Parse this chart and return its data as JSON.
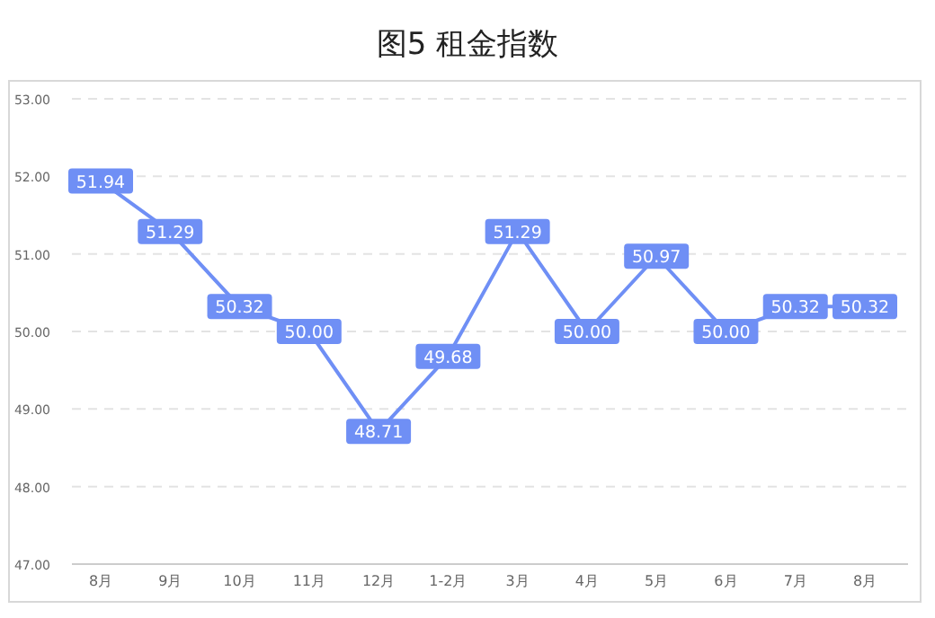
{
  "chart_data": {
    "type": "line",
    "title": "图5 租金指数",
    "categories": [
      "8月",
      "9月",
      "10月",
      "11月",
      "12月",
      "1-2月",
      "3月",
      "4月",
      "5月",
      "6月",
      "7月",
      "8月"
    ],
    "series": [
      {
        "color": "#6f8ff5",
        "values": [
          51.94,
          51.29,
          50.32,
          50.0,
          48.71,
          49.68,
          51.29,
          50.0,
          50.97,
          50.0,
          50.32,
          50.32
        ],
        "value_labels": [
          "51.94",
          "51.29",
          "50.32",
          "50.00",
          "48.71",
          "49.68",
          "51.29",
          "50.00",
          "50.97",
          "50.00",
          "50.32",
          "50.32"
        ]
      }
    ],
    "ylim": [
      47,
      53
    ],
    "yticks": [
      {
        "value": 47,
        "label": "47.00"
      },
      {
        "value": 48,
        "label": "48.00"
      },
      {
        "value": 49,
        "label": "49.00"
      },
      {
        "value": 50,
        "label": "50.00"
      },
      {
        "value": 51,
        "label": "51.00"
      },
      {
        "value": 52,
        "label": "52.00"
      },
      {
        "value": 53,
        "label": "53.00"
      }
    ],
    "grid": "y",
    "line_style": "solid",
    "marker": "square"
  }
}
